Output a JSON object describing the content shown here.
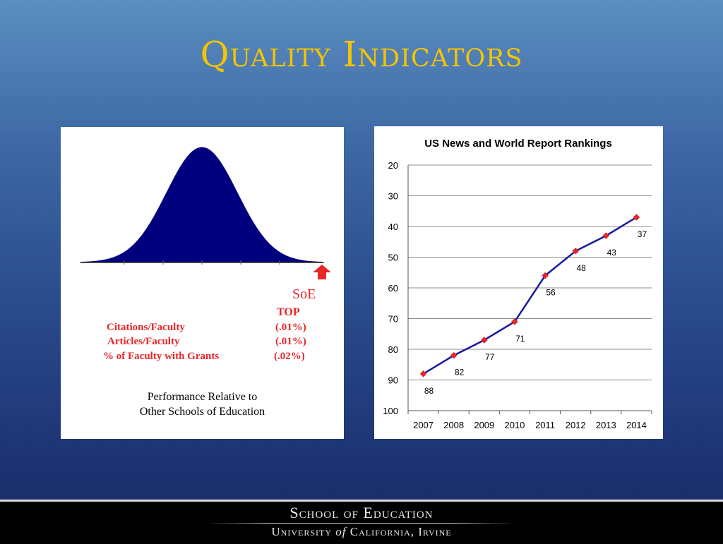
{
  "slide": {
    "title": "Quality Indicators",
    "footer_line1": "School of Education",
    "footer_line2_a": "University ",
    "footer_line2_of": "of",
    "footer_line2_b": " California, Irvine"
  },
  "left_panel": {
    "soe_label": "SoE",
    "top_label": "TOP",
    "rows": [
      {
        "label": "Citations/Faculty",
        "value": "(.01%)"
      },
      {
        "label": "Articles/Faculty",
        "value": "(.01%)"
      },
      {
        "label": "% of Faculty with Grants",
        "value": "(.02%)"
      }
    ],
    "caption_line1": "Performance Relative to",
    "caption_line2": "Other Schools of Education",
    "arrow_icon": "up-arrow-icon",
    "colors": {
      "curve": "#00007f",
      "arrow": "#e8262a",
      "text": "#e8262a"
    }
  },
  "chart_data": {
    "type": "line",
    "title": "US News and World Report Rankings",
    "x": [
      "2007",
      "2008",
      "2009",
      "2010",
      "2011",
      "2012",
      "2013",
      "2014"
    ],
    "series": [
      {
        "values": [
          88,
          82,
          77,
          71,
          56,
          48,
          43,
          37
        ]
      }
    ],
    "data_labels": [
      "88",
      "82",
      "77",
      "71",
      "56",
      "48",
      "43",
      "37"
    ],
    "y_ticks": [
      "20",
      "30",
      "40",
      "50",
      "60",
      "70",
      "80",
      "90",
      "100"
    ],
    "ylim": [
      20,
      100
    ],
    "y_reversed": true,
    "grid": true,
    "legend": "none",
    "colors": {
      "line": "#1818a0",
      "marker": "#e8262a"
    }
  }
}
